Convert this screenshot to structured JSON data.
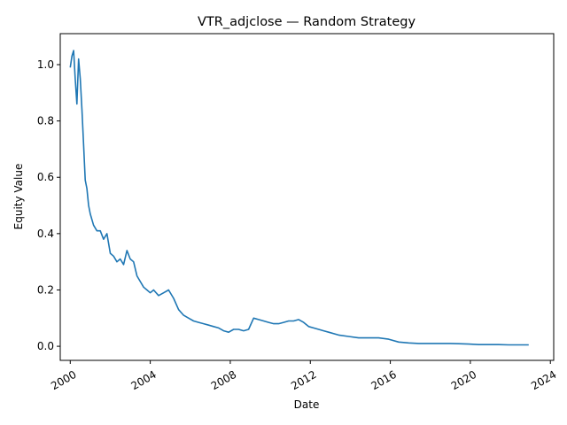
{
  "chart_data": {
    "type": "line",
    "title": "VTR_adjclose — Random Strategy",
    "xlabel": "Date",
    "ylabel": "Equity Value",
    "x_ticks": [
      "2000",
      "2004",
      "2008",
      "2012",
      "2016",
      "2020",
      "2024"
    ],
    "y_ticks": [
      "0.0",
      "0.2",
      "0.4",
      "0.6",
      "0.8",
      "1.0"
    ],
    "xlim": [
      "1999-07",
      "2024-03"
    ],
    "ylim": [
      -0.05,
      1.11
    ],
    "grid": false,
    "line_color": "#1f77b4",
    "series": [
      {
        "x": [
          "2000-01",
          "2000-02",
          "2000-03",
          "2000-04",
          "2000-05",
          "2000-06",
          "2000-07",
          "2000-08",
          "2000-09",
          "2000-10",
          "2000-11",
          "2000-12",
          "2001-01",
          "2001-03",
          "2001-05",
          "2001-07",
          "2001-09",
          "2001-11",
          "2002-01",
          "2002-03",
          "2002-05",
          "2002-07",
          "2002-09",
          "2002-11",
          "2003-01",
          "2003-03",
          "2003-05",
          "2003-07",
          "2003-09",
          "2003-11",
          "2004-01",
          "2004-03",
          "2004-06",
          "2004-09",
          "2004-12",
          "2005-03",
          "2005-06",
          "2005-09",
          "2005-12",
          "2006-03",
          "2006-06",
          "2006-09",
          "2006-12",
          "2007-03",
          "2007-06",
          "2007-09",
          "2007-12",
          "2008-03",
          "2008-06",
          "2008-09",
          "2008-12",
          "2009-03",
          "2009-06",
          "2009-09",
          "2009-12",
          "2010-03",
          "2010-06",
          "2010-09",
          "2010-12",
          "2011-03",
          "2011-06",
          "2011-09",
          "2011-12",
          "2012-03",
          "2012-06",
          "2012-09",
          "2012-12",
          "2013-06",
          "2013-12",
          "2014-06",
          "2014-12",
          "2015-06",
          "2015-12",
          "2016-06",
          "2016-12",
          "2017-06",
          "2017-12",
          "2018-06",
          "2018-12",
          "2019-06",
          "2019-12",
          "2020-06",
          "2020-12",
          "2021-06",
          "2021-12",
          "2022-06",
          "2022-12"
        ],
        "y": [
          0.99,
          1.03,
          1.05,
          0.95,
          0.86,
          1.02,
          0.95,
          0.84,
          0.72,
          0.59,
          0.56,
          0.5,
          0.47,
          0.43,
          0.41,
          0.41,
          0.38,
          0.4,
          0.33,
          0.32,
          0.3,
          0.31,
          0.29,
          0.34,
          0.31,
          0.3,
          0.25,
          0.23,
          0.21,
          0.2,
          0.19,
          0.2,
          0.18,
          0.19,
          0.2,
          0.17,
          0.13,
          0.11,
          0.1,
          0.09,
          0.085,
          0.08,
          0.075,
          0.07,
          0.065,
          0.055,
          0.05,
          0.06,
          0.06,
          0.055,
          0.06,
          0.1,
          0.095,
          0.09,
          0.085,
          0.08,
          0.08,
          0.085,
          0.09,
          0.09,
          0.095,
          0.085,
          0.07,
          0.065,
          0.06,
          0.055,
          0.05,
          0.04,
          0.035,
          0.03,
          0.03,
          0.03,
          0.025,
          0.015,
          0.012,
          0.01,
          0.01,
          0.01,
          0.01,
          0.009,
          0.008,
          0.006,
          0.006,
          0.006,
          0.005,
          0.005,
          0.005
        ]
      }
    ]
  }
}
